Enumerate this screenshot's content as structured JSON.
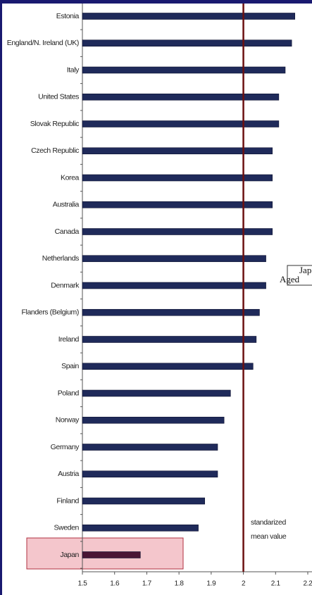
{
  "chart_data": {
    "type": "barh",
    "categories": [
      "Estonia",
      "England/N. Ireland (UK)",
      "Italy",
      "United States",
      "Slovak Republic",
      "Czech Republic",
      "Korea",
      "Australia",
      "Canada",
      "Netherlands",
      "Denmark",
      "Flanders (Belgium)",
      "Ireland",
      "Spain",
      "Poland",
      "Norway",
      "Germany",
      "Austria",
      "Finland",
      "Sweden",
      "Japan"
    ],
    "values": [
      2.16,
      2.15,
      2.13,
      2.11,
      2.11,
      2.09,
      2.09,
      2.09,
      2.09,
      2.07,
      2.07,
      2.05,
      2.04,
      2.03,
      1.96,
      1.94,
      1.92,
      1.92,
      1.88,
      1.86,
      1.68
    ],
    "colors": [
      "#1f2a5a",
      "#1f2a5a",
      "#1f2a5a",
      "#1f2a5a",
      "#1f2a5a",
      "#1f2a5a",
      "#1f2a5a",
      "#1f2a5a",
      "#1f2a5a",
      "#1f2a5a",
      "#1f2a5a",
      "#1f2a5a",
      "#1f2a5a",
      "#1f2a5a",
      "#1f2a5a",
      "#1f2a5a",
      "#1f2a5a",
      "#1f2a5a",
      "#1f2a5a",
      "#1f2a5a",
      "#4a1535"
    ],
    "xlim": [
      1.5,
      2.2
    ],
    "xticks": [
      1.5,
      1.6,
      1.7,
      1.8,
      1.9,
      2,
      2.1,
      2.2
    ],
    "reference_line": {
      "value": 2,
      "color": "#6b1010",
      "label": [
        "standarized",
        "mean value"
      ]
    },
    "callout": [
      "Jap",
      "Aged"
    ]
  }
}
